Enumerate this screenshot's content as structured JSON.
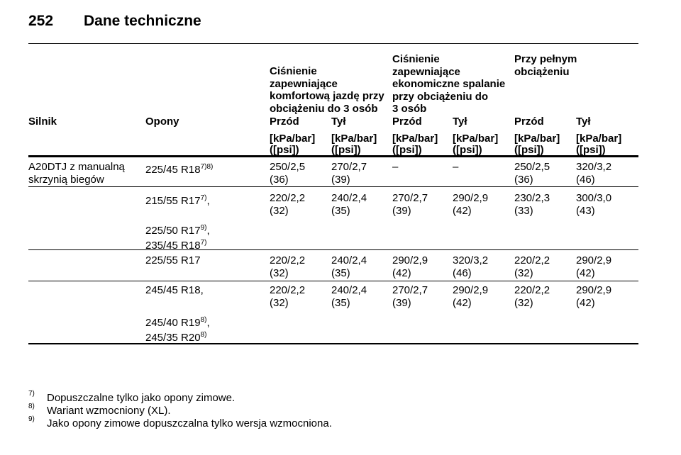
{
  "header": {
    "page_number": "252",
    "title": "Dane techniczne"
  },
  "table": {
    "group_headers": [
      [
        "Ciśnienie",
        "zapewniające",
        "komfortową jazdę przy",
        "obciążeniu do 3 osób"
      ],
      [
        "Ciśnienie",
        "zapewniające",
        "ekonomiczne spalanie",
        "przy obciążeniu do",
        "3 osób"
      ],
      [
        "Przy pełnym",
        "obciążeniu"
      ]
    ],
    "columns": [
      "Silnik",
      "Opony",
      "Przód",
      "Tył",
      "Przód",
      "Tył",
      "Przód",
      "Tył"
    ],
    "units": [
      [
        "[kPa/bar]",
        "([psi])"
      ],
      [
        "[kPa/bar]",
        "([psi])"
      ],
      [
        "[kPa/bar]",
        "([psi])"
      ],
      [
        "[kPa/bar]",
        "([psi])"
      ],
      [
        "[kPa/bar]",
        "([psi])"
      ],
      [
        "[kPa/bar]",
        "([psi])"
      ]
    ],
    "engine": [
      "A20DTJ z manualną",
      "skrzynią biegów"
    ],
    "rows": [
      {
        "tyres": [
          {
            "text": "225/45 R18",
            "sup": "7)8)"
          }
        ],
        "values": [
          [
            "250/2,5",
            "(36)"
          ],
          [
            "270/2,7",
            "(39)"
          ],
          [
            "–"
          ],
          [
            "–"
          ],
          [
            "250/2,5",
            "(36)"
          ],
          [
            "320/3,2",
            "(46)"
          ]
        ]
      },
      {
        "tyres": [
          {
            "text": "215/55 R17",
            "sup": "7)",
            "after": ","
          },
          {
            "text": "225/50 R17",
            "sup": "9)",
            "after": ","
          },
          {
            "text": "235/45 R18",
            "sup": "7)"
          }
        ],
        "values": [
          [
            "220/2,2",
            "(32)"
          ],
          [
            "240/2,4",
            "(35)"
          ],
          [
            "270/2,7",
            "(39)"
          ],
          [
            "290/2,9",
            "(42)"
          ],
          [
            "230/2,3",
            "(33)"
          ],
          [
            "300/3,0",
            "(43)"
          ]
        ]
      },
      {
        "tyres": [
          {
            "text": "225/55 R17"
          }
        ],
        "values": [
          [
            "220/2,2",
            "(32)"
          ],
          [
            "240/2,4",
            "(35)"
          ],
          [
            "290/2,9",
            "(42)"
          ],
          [
            "320/3,2",
            "(46)"
          ],
          [
            "220/2,2",
            "(32)"
          ],
          [
            "290/2,9",
            "(42)"
          ]
        ]
      },
      {
        "tyres": [
          {
            "text": "245/45 R18,"
          },
          {
            "text": "245/40 R19",
            "sup": "8)",
            "after": ","
          },
          {
            "text": "245/35 R20",
            "sup": "8)"
          }
        ],
        "values": [
          [
            "220/2,2",
            "(32)"
          ],
          [
            "240/2,4",
            "(35)"
          ],
          [
            "270/2,7",
            "(39)"
          ],
          [
            "290/2,9",
            "(42)"
          ],
          [
            "220/2,2",
            "(32)"
          ],
          [
            "290/2,9",
            "(42)"
          ]
        ]
      }
    ]
  },
  "footnotes": [
    {
      "mark": "7)",
      "text": "Dopuszczalne tylko jako opony zimowe."
    },
    {
      "mark": "8)",
      "text": "Wariant wzmocniony (XL)."
    },
    {
      "mark": "9)",
      "text": "Jako opony zimowe dopuszczalna tylko wersja wzmocniona."
    }
  ]
}
